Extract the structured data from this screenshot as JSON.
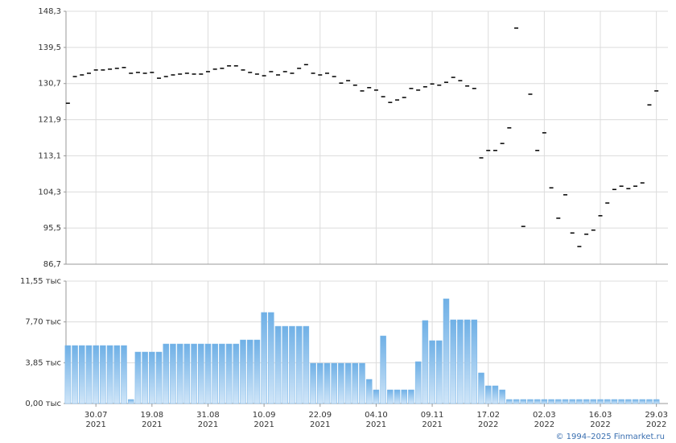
{
  "chart_data": [
    {
      "type": "marker",
      "color": "#000000",
      "values": [
        125.9,
        132.4,
        132.8,
        133.2,
        134.0,
        134.0,
        134.2,
        134.4,
        134.6,
        133.2,
        133.4,
        133.2,
        133.4,
        132.0,
        132.4,
        132.8,
        133.0,
        133.2,
        133.0,
        133.0,
        133.6,
        134.2,
        134.4,
        135.0,
        135.0,
        134.0,
        133.4,
        133.0,
        132.6,
        133.6,
        132.8,
        133.6,
        133.2,
        134.4,
        135.3,
        133.2,
        132.8,
        133.2,
        132.4,
        130.8,
        131.4,
        130.3,
        128.9,
        129.7,
        129.1,
        127.5,
        126.1,
        126.7,
        127.3,
        129.5,
        129.1,
        129.9,
        130.6,
        130.3,
        131.0,
        132.2,
        131.4,
        130.1,
        129.5,
        112.6,
        114.4,
        114.4,
        116.1,
        119.9,
        144.2,
        95.9,
        128.1,
        114.4,
        118.7,
        105.3,
        97.9,
        103.6,
        94.3,
        91.0,
        94.0,
        95.0,
        98.5,
        101.6,
        104.9,
        105.7,
        105.1,
        105.7,
        106.5,
        125.5,
        128.9
      ],
      "ylim": [
        86.7,
        148.3
      ],
      "yticks": [
        {
          "value": 148.3,
          "label": "148,3"
        },
        {
          "value": 139.5,
          "label": "139,5"
        },
        {
          "value": 130.7,
          "label": "130,7"
        },
        {
          "value": 121.9,
          "label": "121,9"
        },
        {
          "value": 113.1,
          "label": "113,1"
        },
        {
          "value": 104.3,
          "label": "104,3"
        },
        {
          "value": 95.5,
          "label": "95,5"
        },
        {
          "value": 86.7,
          "label": "86,7"
        }
      ],
      "grid": true
    },
    {
      "type": "bar",
      "color": "#7ab6e8",
      "categories": [
        null,
        null,
        null,
        null,
        "30.07",
        null,
        null,
        null,
        null,
        null,
        null,
        null,
        "19.08",
        null,
        null,
        null,
        null,
        null,
        null,
        null,
        "31.08",
        null,
        null,
        null,
        null,
        null,
        null,
        null,
        "10.09",
        null,
        null,
        null,
        null,
        null,
        null,
        null,
        "22.09",
        null,
        null,
        null,
        null,
        null,
        null,
        null,
        "04.10",
        null,
        null,
        null,
        null,
        null,
        null,
        null,
        "09.11",
        null,
        null,
        null,
        null,
        null,
        null,
        null,
        "17.02",
        null,
        null,
        null,
        null,
        null,
        null,
        null,
        "02.03",
        null,
        null,
        null,
        null,
        null,
        null,
        null,
        "16.03",
        null,
        null,
        null,
        null,
        null,
        null,
        null,
        "29.03"
      ],
      "category_years": [
        null,
        null,
        null,
        null,
        "2021",
        null,
        null,
        null,
        null,
        null,
        null,
        null,
        "2021",
        null,
        null,
        null,
        null,
        null,
        null,
        null,
        "2021",
        null,
        null,
        null,
        null,
        null,
        null,
        null,
        "2021",
        null,
        null,
        null,
        null,
        null,
        null,
        null,
        "2021",
        null,
        null,
        null,
        null,
        null,
        null,
        null,
        "2021",
        null,
        null,
        null,
        null,
        null,
        null,
        null,
        "2021",
        null,
        null,
        null,
        null,
        null,
        null,
        null,
        "2022",
        null,
        null,
        null,
        null,
        null,
        null,
        null,
        "2022",
        null,
        null,
        null,
        null,
        null,
        null,
        null,
        "2022",
        null,
        null,
        null,
        null,
        null,
        null,
        null,
        "2022"
      ],
      "values": [
        5.47,
        5.47,
        5.47,
        5.47,
        5.47,
        5.47,
        5.47,
        5.47,
        5.47,
        0.38,
        4.86,
        4.86,
        4.86,
        4.86,
        5.62,
        5.62,
        5.62,
        5.62,
        5.62,
        5.62,
        5.62,
        5.62,
        5.62,
        5.62,
        5.62,
        6.0,
        6.0,
        6.0,
        8.59,
        8.59,
        7.29,
        7.29,
        7.29,
        7.29,
        7.29,
        3.8,
        3.8,
        3.8,
        3.8,
        3.8,
        3.8,
        3.8,
        3.8,
        2.28,
        1.29,
        6.38,
        1.29,
        1.29,
        1.29,
        1.29,
        3.95,
        7.83,
        5.93,
        5.93,
        9.88,
        7.9,
        7.9,
        7.9,
        7.9,
        2.89,
        1.67,
        1.67,
        1.29,
        0.38,
        0.38,
        0.38,
        0.38,
        0.38,
        0.38,
        0.38,
        0.38,
        0.38,
        0.38,
        0.38,
        0.38,
        0.38,
        0.38,
        0.38,
        0.38,
        0.38,
        0.38,
        0.38,
        0.38,
        0.38,
        0.38
      ],
      "ylim": [
        0,
        11.55
      ],
      "yticks": [
        {
          "value": 0,
          "label": "0,00 тыс"
        },
        {
          "value": 3.85,
          "label": "3,85 тыс"
        },
        {
          "value": 7.7,
          "label": "7,70 тыс"
        },
        {
          "value": 11.55,
          "label": "11,55 тыс"
        }
      ],
      "grid": true
    }
  ],
  "footer": "© 1994–2025 Finmarket.ru"
}
